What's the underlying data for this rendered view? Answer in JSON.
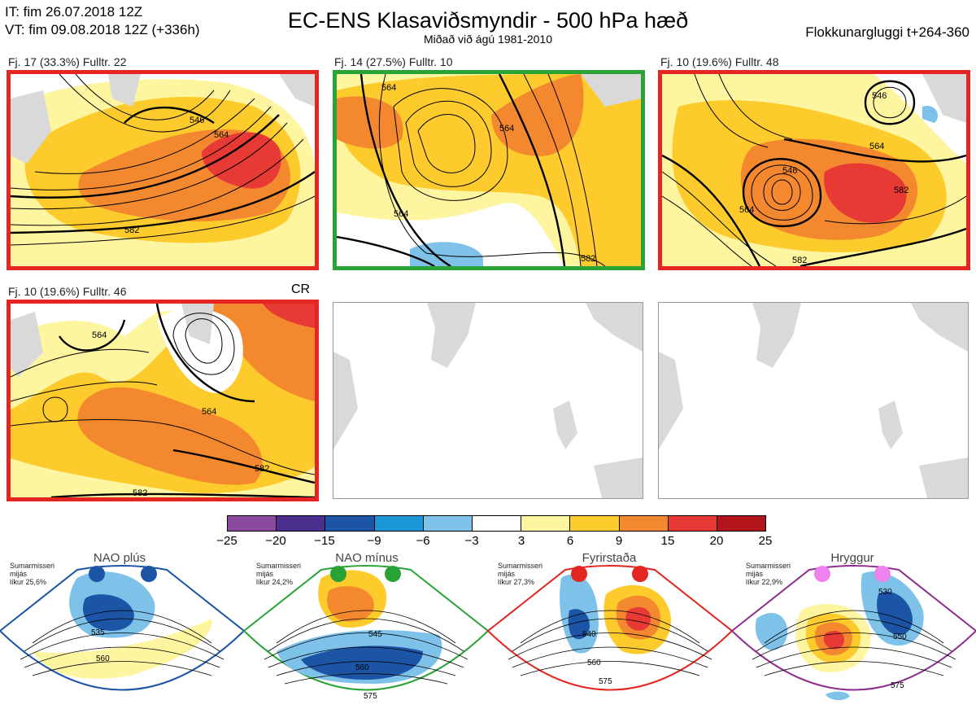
{
  "header": {
    "it_line": "IT: fim 26.07.2018 12Z",
    "vt_line": "VT: fim 09.08.2018 12Z  (+336h)",
    "title": "EC-ENS Klasaviðsmyndir - 500 hPa hæð",
    "subtitle": "Miðað við ágú 1981-2010",
    "window": "Flokkunargluggi t+264-360"
  },
  "clusters": [
    {
      "label": "Fj. 17 (33.3%)   Fulltr. 22",
      "border": "#e52521",
      "contours": [
        "546",
        "564",
        "582"
      ]
    },
    {
      "label": "Fj. 14 (27.5%)   Fulltr. 10",
      "border": "#2aa336",
      "contours": [
        "564",
        "564",
        "564",
        "582"
      ]
    },
    {
      "label": "Fj. 10 (19.6%)   Fulltr. 48",
      "border": "#e52521",
      "contours": [
        "546",
        "564",
        "546",
        "582",
        "564",
        "582"
      ]
    },
    {
      "label": "Fj. 10 (19.6%)   Fulltr. 46",
      "border": "#e52521",
      "contours": [
        "564",
        "564",
        "582",
        "582"
      ]
    }
  ],
  "cr_label": "CR",
  "colorbar": {
    "colors": [
      "#8a4a9e",
      "#4a2f8f",
      "#1c55a5",
      "#1b96d6",
      "#7ec2ea",
      "#ffffff",
      "#fef5a0",
      "#fdcb2b",
      "#f4882f",
      "#e83a35",
      "#b3131b"
    ],
    "ticks": [
      "−25",
      "−20",
      "−15",
      "−9",
      "−6",
      "−3",
      "3",
      "6",
      "9",
      "15",
      "20",
      "25"
    ]
  },
  "regimes": [
    {
      "title": "NAO plús",
      "season": "Sumarmisseri",
      "freq_label": "mijás",
      "prob": "líkur 25,6%",
      "color": "#1c55a5",
      "dot": "#1c55a5",
      "contours": [
        "535",
        "560"
      ]
    },
    {
      "title": "NAO mínus",
      "season": "Sumarmisseri",
      "freq_label": "mijás",
      "prob": "líkur 24,2%",
      "color": "#2aa336",
      "dot": "#2aa336",
      "contours": [
        "545",
        "560",
        "575"
      ]
    },
    {
      "title": "Fyrirstaða",
      "season": "Sumarmisseri",
      "freq_label": "mijás",
      "prob": "líkur 27,3%",
      "color": "#e52521",
      "dot": "#e52521",
      "contours": [
        "540",
        "560",
        "575"
      ]
    },
    {
      "title": "Hryggur",
      "season": "Sumarmisseri",
      "freq_label": "mijás",
      "prob": "líkur 22,9%",
      "color": "#8e2e8e",
      "dot": "#ee82ee",
      "contours": [
        "530",
        "550",
        "575"
      ]
    }
  ]
}
